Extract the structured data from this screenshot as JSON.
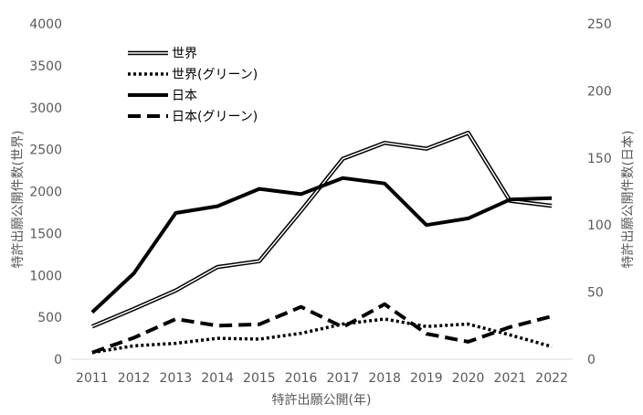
{
  "chart_data": {
    "type": "line",
    "title": "",
    "xlabel": "特許出願公開(年)",
    "ylabel_left": "特許出願公開件数(世界)",
    "ylabel_right": "特許出願公開件数(日本)",
    "x": [
      "2011",
      "2012",
      "2013",
      "2014",
      "2015",
      "2016",
      "2017",
      "2018",
      "2019",
      "2020",
      "2021",
      "2022"
    ],
    "ylim_left": [
      0,
      4000
    ],
    "yticks_left": [
      "0",
      "500",
      "1000",
      "1500",
      "2000",
      "2500",
      "3000",
      "3500",
      "4000"
    ],
    "ylim_right": [
      0,
      250
    ],
    "yticks_right": [
      "0",
      "50",
      "100",
      "150",
      "200",
      "250"
    ],
    "grid": false,
    "legend_position": "top-left",
    "series": [
      {
        "name": "世界",
        "axis": "left",
        "style": "double",
        "values": [
          390,
          600,
          820,
          1100,
          1170,
          1770,
          2390,
          2580,
          2510,
          2700,
          1890,
          1830
        ]
      },
      {
        "name": "世界(グリーン)",
        "axis": "left",
        "style": "dotted",
        "values": [
          80,
          160,
          190,
          250,
          240,
          310,
          420,
          480,
          390,
          420,
          290,
          150
        ]
      },
      {
        "name": "日本",
        "axis": "right",
        "style": "solid",
        "values": [
          35,
          64,
          109,
          114,
          127,
          123,
          135,
          131,
          100,
          105,
          119,
          120
        ]
      },
      {
        "name": "日本(グリーン)",
        "axis": "right",
        "style": "dashed",
        "values": [
          5,
          16,
          30,
          25,
          26,
          39,
          24,
          41,
          19,
          13,
          24,
          32
        ]
      }
    ]
  }
}
